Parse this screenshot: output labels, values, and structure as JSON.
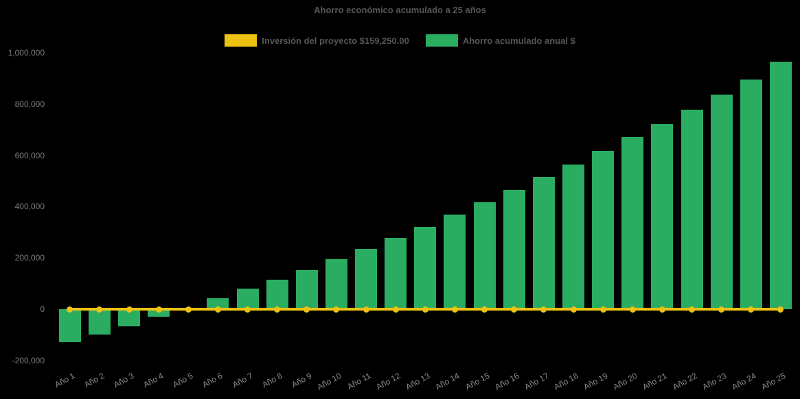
{
  "colors": {
    "background": "#000000",
    "bar_green": "#2BAD61",
    "line_yellow": "#EDC213",
    "title_text": "#565656",
    "x_axis_label": "#8B8B8B",
    "y_axis_label": "#7D7D7D"
  },
  "legend": {
    "items": [
      {
        "label": "Inversión del proyecto $159,250.00",
        "color": "#EDC213",
        "series_type": "line"
      },
      {
        "label": "Ahorro acumulado anual $",
        "color": "#2BAD61",
        "series_type": "bar"
      }
    ]
  },
  "chart_data": {
    "type": "bar",
    "title": "Ahorro económico acumulado a 25 años",
    "categories": [
      "Año 1",
      "Año 2",
      "Año 3",
      "Año 4",
      "Año 5",
      "Año 6",
      "Año 7",
      "Año 8",
      "Año 9",
      "Año 10",
      "Año 11",
      "Año 12",
      "Año 13",
      "Año 14",
      "Año 15",
      "Año 16",
      "Año 17",
      "Año 18",
      "Año 19",
      "Año 20",
      "Año 21",
      "Año 22",
      "Año 23",
      "Año 24",
      "Año 25"
    ],
    "series": [
      {
        "name": "Inversión del proyecto $159,250.00",
        "type": "line",
        "color": "#EDC213",
        "investment_amount_label": "$159,250.00",
        "values": [
          0,
          0,
          0,
          0,
          0,
          0,
          0,
          0,
          0,
          0,
          0,
          0,
          0,
          0,
          0,
          0,
          0,
          0,
          0,
          0,
          0,
          0,
          0,
          0,
          0
        ]
      },
      {
        "name": "Ahorro acumulado anual $",
        "type": "bar",
        "color": "#2BAD61",
        "values": [
          -128000,
          -100000,
          -66000,
          -30000,
          4000,
          43000,
          80000,
          116000,
          153000,
          195000,
          236000,
          277000,
          320000,
          368000,
          417000,
          466000,
          515000,
          564000,
          617000,
          671000,
          721000,
          778000,
          836000,
          896000,
          966000
        ]
      }
    ],
    "xlabel": "",
    "ylabel": "",
    "ylim": [
      -200000,
      1000000
    ],
    "ytick_step": 200000,
    "ytick_labels": [
      "-200,000",
      "0",
      "200,000",
      "400,000",
      "600,000",
      "800,000",
      "1,000,000"
    ],
    "grid": false,
    "legend_position": "top"
  }
}
